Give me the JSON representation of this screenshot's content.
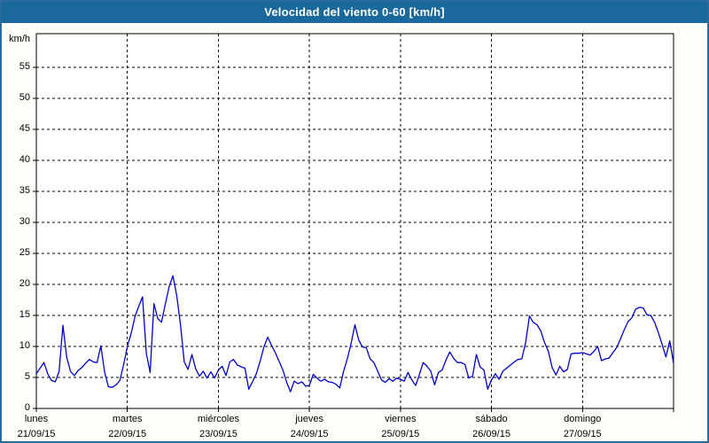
{
  "window": {
    "title": "Velocidad del viento 0-60 [km/h]",
    "colors": {
      "titlebar": "#1b699c",
      "frame": "#2a6c9c",
      "background": "#fdfdfa",
      "plot_background": "#ffffff",
      "line": "#0000cc",
      "grid": "#000000",
      "text": "#000000",
      "title_text": "#ffffff"
    }
  },
  "chart_data": {
    "type": "line",
    "title": "Velocidad del viento 0-60 [km/h]",
    "ylabel": "km/h",
    "xlabel": "",
    "ylim": [
      0,
      60
    ],
    "ytick_interval": 5,
    "ytick_labels": [
      "0",
      "5",
      "10",
      "15",
      "20",
      "25",
      "30",
      "35",
      "40",
      "45",
      "50",
      "55"
    ],
    "grid": "dashed",
    "legend_position": "none",
    "samples_per_day": 24,
    "x_days": [
      {
        "name": "lunes",
        "date": "21/09/15"
      },
      {
        "name": "martes",
        "date": "22/09/15"
      },
      {
        "name": "miércoles",
        "date": "23/09/15"
      },
      {
        "name": "jueves",
        "date": "24/09/15"
      },
      {
        "name": "viernes",
        "date": "25/09/15"
      },
      {
        "name": "sábado",
        "date": "26/09/15"
      },
      {
        "name": "domingo",
        "date": "27/09/15"
      }
    ],
    "series": [
      {
        "name": "velocidad-del-viento-kmh",
        "values": [
          5.6,
          6.5,
          7.4,
          5.6,
          4.5,
          4.3,
          6.0,
          13.4,
          8.3,
          6.0,
          5.3,
          6.1,
          6.6,
          7.3,
          7.9,
          7.5,
          7.4,
          10.1,
          5.9,
          3.5,
          3.4,
          3.8,
          4.5,
          7.0,
          10.0,
          12.1,
          14.8,
          16.5,
          18.0,
          8.9,
          5.8,
          16.9,
          14.5,
          13.9,
          16.8,
          19.6,
          21.4,
          18.2,
          13.6,
          7.5,
          6.3,
          8.7,
          6.4,
          5.2,
          6.0,
          4.9,
          5.9,
          4.9,
          6.2,
          6.8,
          5.3,
          7.5,
          7.9,
          7.0,
          6.7,
          6.5,
          3.1,
          4.3,
          5.6,
          7.6,
          9.9,
          11.5,
          10.2,
          9.0,
          7.6,
          6.2,
          4.2,
          2.7,
          4.4,
          4.0,
          4.3,
          3.6,
          3.7,
          5.5,
          4.9,
          4.4,
          4.7,
          4.3,
          4.2,
          3.9,
          3.3,
          6.0,
          8.0,
          10.5,
          13.5,
          11.0,
          9.9,
          9.8,
          8.0,
          7.4,
          6.0,
          4.6,
          4.2,
          4.8,
          4.4,
          4.9,
          4.7,
          4.4,
          5.8,
          4.6,
          3.7,
          5.5,
          7.4,
          6.8,
          6.0,
          3.8,
          5.8,
          6.2,
          7.8,
          9.1,
          8.1,
          7.4,
          7.4,
          7.1,
          4.9,
          5.2,
          8.7,
          6.7,
          6.2,
          3.1,
          4.6,
          5.6,
          4.7,
          6.0,
          6.5,
          7.0,
          7.5,
          7.9,
          8.0,
          10.6,
          14.9,
          13.9,
          13.5,
          12.5,
          10.6,
          9.2,
          6.6,
          5.4,
          6.8,
          5.9,
          6.3,
          8.8,
          8.9,
          8.9,
          9.0,
          8.8,
          8.6,
          9.2,
          10.0,
          7.7,
          8.0,
          8.1,
          9.0,
          9.8,
          11.2,
          12.7,
          14.0,
          14.6,
          16.0,
          16.3,
          16.2,
          15.1,
          15.0,
          13.9,
          12.2,
          10.3,
          8.3,
          10.9,
          7.3
        ]
      }
    ]
  }
}
